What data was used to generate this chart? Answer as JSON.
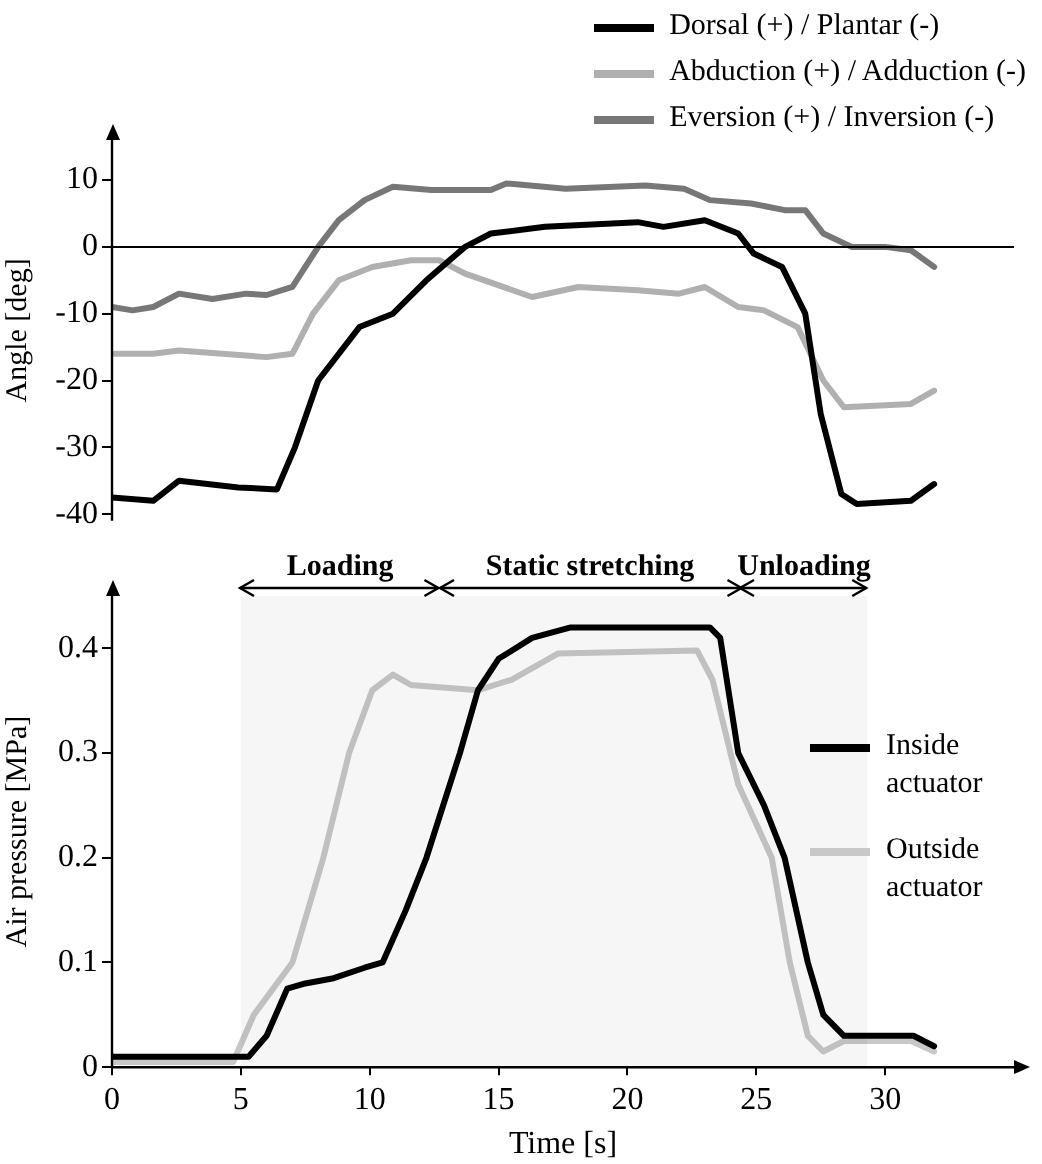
{
  "chart_data": [
    {
      "type": "line",
      "ylabel": "Angle [deg]",
      "xlim": [
        0,
        35
      ],
      "ylim": [
        -41,
        16
      ],
      "yticks": [
        10,
        0,
        -10,
        -20,
        -30,
        -40
      ],
      "tick_labels": "y",
      "grid": false,
      "legend": "top right",
      "line_style": "solid",
      "marker": "none",
      "ref_lines": [
        {
          "axis": "y",
          "value": 0,
          "color": "#000000"
        }
      ],
      "series": [
        {
          "name": "Dorsal (+) / Plantar (-)",
          "color": "#000000",
          "x": [
            0,
            1.6,
            2.6,
            4.9,
            6.4,
            7.1,
            8.0,
            9.6,
            10.9,
            12.2,
            13.7,
            14.7,
            16.8,
            20.4,
            21.4,
            23,
            24.3,
            24.9,
            26,
            26.9,
            27.5,
            28.3,
            28.9,
            31,
            31.9
          ],
          "values": [
            -37.5,
            -38,
            -35,
            -36,
            -36.3,
            -30,
            -20,
            -12,
            -10,
            -5,
            0,
            2,
            3,
            3.7,
            3,
            4,
            2,
            -1,
            -3,
            -10,
            -25,
            -37,
            -38.5,
            -38,
            -35.5
          ]
        },
        {
          "name": "Abduction (+) / Adduction (-)",
          "color": "#b0b0b0",
          "x": [
            0,
            1.6,
            2.6,
            6,
            7,
            7.8,
            8.8,
            10.1,
            11.6,
            12.7,
            13.7,
            16.3,
            18.1,
            20.4,
            22,
            23,
            24.3,
            25.3,
            26.6,
            27.6,
            28.4,
            31,
            31.9
          ],
          "values": [
            -16,
            -16,
            -15.5,
            -16.5,
            -16,
            -10,
            -5,
            -3,
            -2,
            -2,
            -4,
            -7.5,
            -6,
            -6.5,
            -7,
            -6,
            -9,
            -9.5,
            -12,
            -20,
            -24,
            -23.5,
            -21.5
          ]
        },
        {
          "name": "Eversion (+) / Inversion (-)",
          "color": "#777777",
          "x": [
            0,
            0.8,
            1.6,
            2.6,
            3.9,
            5.2,
            6,
            7,
            8,
            8.8,
            9.8,
            10.9,
            12.4,
            14.7,
            15.3,
            17.6,
            20.7,
            22.2,
            23.2,
            24.8,
            26.1,
            26.9,
            27.6,
            28.7,
            30,
            31,
            31.9
          ],
          "values": [
            -9,
            -9.5,
            -9,
            -7,
            -7.8,
            -7,
            -7.2,
            -6,
            0,
            4,
            7,
            9,
            8.5,
            8.5,
            9.5,
            8.7,
            9.2,
            8.7,
            7,
            6.5,
            5.5,
            5.5,
            2,
            0,
            0,
            -0.5,
            -3
          ]
        }
      ]
    },
    {
      "type": "line",
      "xlabel": "Time [s]",
      "ylabel": "Air pressure [MPa]",
      "xlim": [
        0,
        35
      ],
      "xticks": [
        0,
        5,
        10,
        15,
        20,
        25,
        30
      ],
      "ylim": [
        0,
        0.45
      ],
      "yticks": [
        0,
        0.1,
        0.2,
        0.3,
        0.4
      ],
      "grid": false,
      "legend": "right",
      "line_style": "solid",
      "marker": "none",
      "bands": [
        {
          "axis": "x",
          "from": 5,
          "to": 12.7,
          "label": "Loading"
        },
        {
          "axis": "x",
          "from": 12.7,
          "to": 24.4,
          "label": "Static stretching"
        },
        {
          "axis": "x",
          "from": 24.4,
          "to": 29.3,
          "label": "Unloading"
        }
      ],
      "series": [
        {
          "name": "Inside actuator",
          "color": "#000000",
          "x": [
            0,
            5.3,
            6,
            6.8,
            7.5,
            8.6,
            9.8,
            10.5,
            11.4,
            12.2,
            13.5,
            14.2,
            15,
            16.3,
            17.8,
            23.2,
            23.6,
            24.3,
            25.3,
            26.1,
            27,
            27.6,
            28.4,
            31.1,
            31.9
          ],
          "values": [
            0.01,
            0.01,
            0.03,
            0.075,
            0.08,
            0.085,
            0.095,
            0.1,
            0.15,
            0.2,
            0.3,
            0.36,
            0.39,
            0.41,
            0.42,
            0.42,
            0.41,
            0.3,
            0.25,
            0.2,
            0.1,
            0.05,
            0.03,
            0.03,
            0.02
          ]
        },
        {
          "name": "Outside actuator",
          "color": "#c8c8c8",
          "x": [
            0,
            4.7,
            5.5,
            7,
            8.2,
            9.2,
            10.1,
            10.9,
            11.6,
            14.2,
            15.5,
            17.3,
            22.7,
            23.3,
            24.3,
            25.6,
            26.3,
            27,
            27.6,
            28.4,
            31,
            31.9
          ],
          "values": [
            0.005,
            0.005,
            0.05,
            0.1,
            0.2,
            0.3,
            0.36,
            0.375,
            0.365,
            0.36,
            0.37,
            0.395,
            0.398,
            0.37,
            0.27,
            0.2,
            0.1,
            0.03,
            0.015,
            0.025,
            0.025,
            0.015
          ]
        }
      ]
    }
  ]
}
